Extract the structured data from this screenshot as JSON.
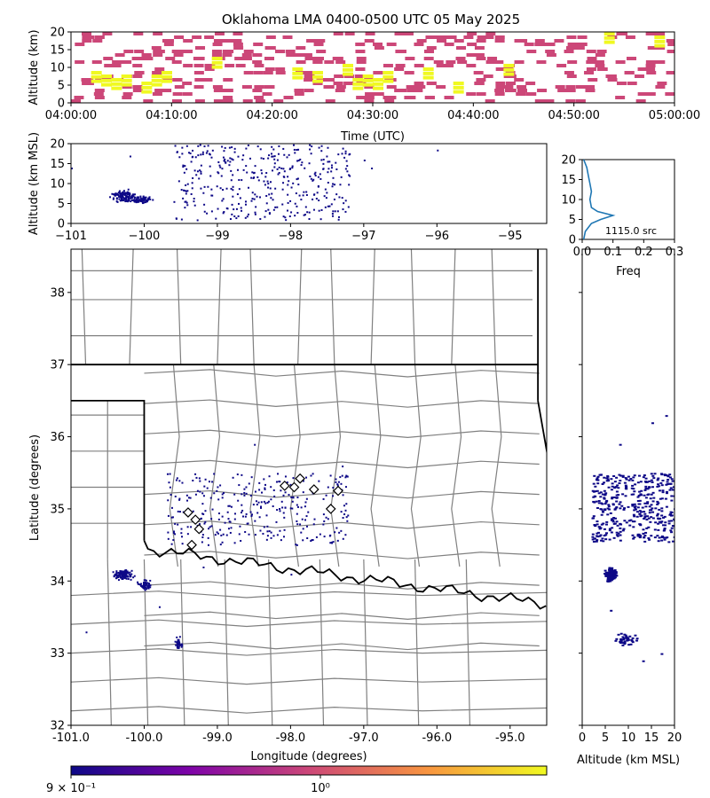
{
  "title": "Oklahoma LMA 0400-0500 UTC 05 May 2025",
  "colors": {
    "source_points": "#0d0887",
    "density_low": "#cc4778",
    "density_high": "#f0f921",
    "county_lines": "#808080",
    "state_lines": "#000000",
    "profile_line": "#1f77b4"
  },
  "chart_data": [
    {
      "id": "time-height",
      "type": "heatmap",
      "ylabel": "Altitude (km)",
      "ylim": [
        0,
        20
      ],
      "yticks": [
        "0",
        "5",
        "10",
        "15",
        "20"
      ],
      "xlabel": "Time (UTC)",
      "xlim": [
        "04:00:00",
        "05:00:00"
      ],
      "xticks": [
        "04:00:00",
        "04:10:00",
        "04:20:00",
        "04:30:00",
        "04:40:00",
        "04:50:00",
        "05:00:00"
      ],
      "density_cells": [
        {
          "t": 2,
          "alt": 8,
          "level": "high"
        },
        {
          "t": 3,
          "alt": 7,
          "level": "high"
        },
        {
          "t": 4,
          "alt": 6,
          "level": "high"
        },
        {
          "t": 5,
          "alt": 7,
          "level": "high"
        },
        {
          "t": 7,
          "alt": 5,
          "level": "high"
        },
        {
          "t": 8,
          "alt": 7,
          "level": "high"
        },
        {
          "t": 9,
          "alt": 8,
          "level": "high"
        },
        {
          "t": 14,
          "alt": 12,
          "level": "high"
        },
        {
          "t": 22,
          "alt": 9,
          "level": "high"
        },
        {
          "t": 24,
          "alt": 8,
          "level": "high"
        },
        {
          "t": 27,
          "alt": 10,
          "level": "high"
        },
        {
          "t": 28,
          "alt": 6,
          "level": "high"
        },
        {
          "t": 29,
          "alt": 7,
          "level": "high"
        },
        {
          "t": 30,
          "alt": 6,
          "level": "high"
        },
        {
          "t": 31,
          "alt": 8,
          "level": "high"
        },
        {
          "t": 35,
          "alt": 9,
          "level": "high"
        },
        {
          "t": 38,
          "alt": 5,
          "level": "high"
        },
        {
          "t": 43,
          "alt": 10,
          "level": "high"
        },
        {
          "t": 53,
          "alt": 19,
          "level": "high"
        },
        {
          "t": 58,
          "alt": 18,
          "level": "high"
        }
      ]
    },
    {
      "id": "lon-alt",
      "type": "scatter",
      "ylabel": "Altitude (km MSL)",
      "ylim": [
        0,
        20
      ],
      "yticks": [
        "0",
        "5",
        "10",
        "15",
        "20"
      ],
      "xlim": [
        -101,
        -94.5
      ],
      "xticks": [
        "−101",
        "−100",
        "−99",
        "−98",
        "−97",
        "−96",
        "−95"
      ]
    },
    {
      "id": "alt-histogram",
      "type": "line",
      "xlabel": "Freq",
      "xlim": [
        0,
        0.3
      ],
      "xticks": [
        "0.0",
        "0.1",
        "0.2",
        "0.3"
      ],
      "ylim": [
        0,
        20
      ],
      "yticks": [
        "0",
        "5",
        "10",
        "15",
        "20"
      ],
      "annotation": "1115.0 src",
      "profile": [
        {
          "alt": 0,
          "freq": 0.005
        },
        {
          "alt": 2,
          "freq": 0.01
        },
        {
          "alt": 4,
          "freq": 0.03
        },
        {
          "alt": 5,
          "freq": 0.06
        },
        {
          "alt": 6,
          "freq": 0.1
        },
        {
          "alt": 7,
          "freq": 0.05
        },
        {
          "alt": 8,
          "freq": 0.03
        },
        {
          "alt": 10,
          "freq": 0.025
        },
        {
          "alt": 12,
          "freq": 0.03
        },
        {
          "alt": 14,
          "freq": 0.025
        },
        {
          "alt": 16,
          "freq": 0.02
        },
        {
          "alt": 18,
          "freq": 0.015
        },
        {
          "alt": 20,
          "freq": 0.005
        }
      ]
    },
    {
      "id": "plan-view",
      "type": "scatter",
      "xlabel": "Longitude (degrees)",
      "ylabel": "Latitude (degrees)",
      "xlim": [
        -101.0,
        -94.5
      ],
      "ylim": [
        32,
        38.6
      ],
      "xticks": [
        "-101.0",
        "-100.0",
        "-99.0",
        "-98.0",
        "-97.0",
        "-96.0",
        "-95.0"
      ],
      "yticks": [
        "32",
        "33",
        "34",
        "35",
        "36",
        "37",
        "38"
      ],
      "stations": [
        [
          -99.4,
          34.95
        ],
        [
          -99.3,
          34.85
        ],
        [
          -99.25,
          34.72
        ],
        [
          -99.35,
          34.5
        ],
        [
          -98.08,
          35.32
        ],
        [
          -97.95,
          35.3
        ],
        [
          -97.87,
          35.42
        ],
        [
          -97.68,
          35.27
        ],
        [
          -97.45,
          35.0
        ],
        [
          -97.35,
          35.25
        ]
      ]
    },
    {
      "id": "alt-lat",
      "type": "scatter",
      "xlabel": "Altitude (km MSL)",
      "xlim": [
        0,
        20
      ],
      "xticks": [
        "0",
        "5",
        "10",
        "15",
        "20"
      ],
      "ylim": [
        32,
        38.6
      ]
    },
    {
      "id": "colorbar",
      "type": "colorbar",
      "scale": "log",
      "ticks": [
        "9 × 10⁻¹",
        "10⁰"
      ]
    }
  ]
}
